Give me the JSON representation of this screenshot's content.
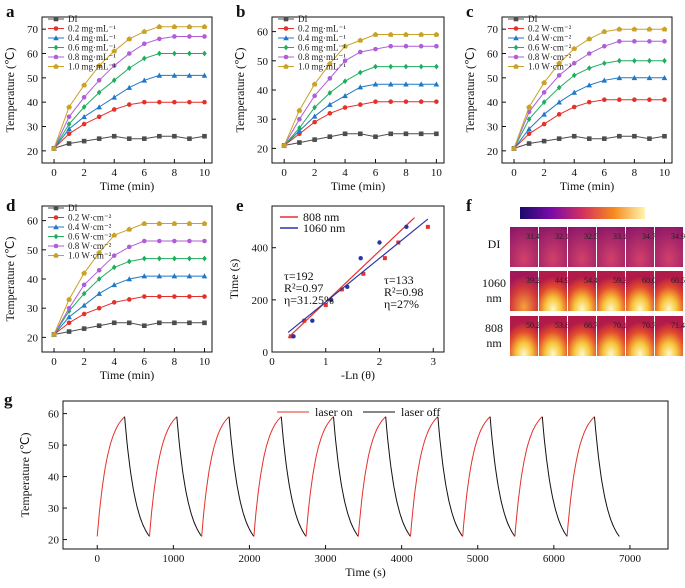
{
  "chart_data": [
    {
      "type": "line",
      "panel": "a",
      "xlabel": "Time (min)",
      "ylabel": "Temperature (℃)",
      "xlim": [
        -0.8,
        10.5
      ],
      "ylim": [
        15,
        75
      ],
      "xticks": [
        0,
        2,
        4,
        6,
        8,
        10
      ],
      "yticks": [
        20,
        30,
        40,
        50,
        60,
        70
      ],
      "x": [
        0,
        1,
        2,
        3,
        4,
        5,
        6,
        7,
        8,
        9,
        10
      ],
      "series": [
        {
          "name": "DI",
          "color": "#4d4d4d",
          "values": [
            21,
            23,
            24,
            25,
            26,
            25,
            25,
            26,
            26,
            25,
            26
          ]
        },
        {
          "name": "0.2 mg·mL⁻¹",
          "color": "#e4312b",
          "values": [
            21,
            27,
            31,
            34,
            37,
            39,
            40,
            40,
            40,
            40,
            40
          ]
        },
        {
          "name": "0.4 mg·mL⁻¹",
          "color": "#1f78c8",
          "values": [
            21,
            29,
            34,
            38,
            42,
            46,
            49,
            51,
            51,
            51,
            51
          ]
        },
        {
          "name": "0.6 mg·mL⁻¹",
          "color": "#1fae5e",
          "values": [
            21,
            31,
            38,
            44,
            49,
            54,
            58,
            60,
            60,
            60,
            60
          ]
        },
        {
          "name": "0.8 mg·mL⁻¹",
          "color": "#b05ed8",
          "values": [
            21,
            34,
            42,
            49,
            55,
            60,
            64,
            66,
            67,
            67,
            67
          ]
        },
        {
          "name": "1.0 mg·mL⁻¹",
          "color": "#c9a227",
          "values": [
            21,
            38,
            47,
            55,
            61,
            66,
            69,
            71,
            71,
            71,
            71
          ]
        }
      ]
    },
    {
      "type": "line",
      "panel": "b",
      "xlabel": "Time (min)",
      "ylabel": "Temperature (℃)",
      "xlim": [
        -0.8,
        10.5
      ],
      "ylim": [
        15,
        65
      ],
      "xticks": [
        0,
        2,
        4,
        6,
        8,
        10
      ],
      "yticks": [
        20,
        30,
        40,
        50,
        60
      ],
      "x": [
        0,
        1,
        2,
        3,
        4,
        5,
        6,
        7,
        8,
        9,
        10
      ],
      "series": [
        {
          "name": "DI",
          "color": "#4d4d4d",
          "values": [
            21,
            22,
            23,
            24,
            25,
            25,
            24,
            25,
            25,
            25,
            25
          ]
        },
        {
          "name": "0.2 mg·mL⁻¹",
          "color": "#e4312b",
          "values": [
            21,
            25,
            29,
            32,
            34,
            35,
            36,
            36,
            36,
            36,
            36
          ]
        },
        {
          "name": "0.4 mg·mL⁻¹",
          "color": "#1f78c8",
          "values": [
            21,
            26,
            31,
            35,
            38,
            41,
            42,
            42,
            42,
            42,
            42
          ]
        },
        {
          "name": "0.6 mg·mL⁻¹",
          "color": "#1fae5e",
          "values": [
            21,
            27,
            34,
            39,
            43,
            46,
            48,
            48,
            48,
            48,
            48
          ]
        },
        {
          "name": "0.8 mg·mL⁻¹",
          "color": "#b05ed8",
          "values": [
            21,
            30,
            38,
            44,
            50,
            53,
            54,
            55,
            55,
            55,
            55
          ]
        },
        {
          "name": "1.0 mg·mL⁻¹",
          "color": "#c9a227",
          "values": [
            21,
            33,
            42,
            49,
            55,
            57,
            59,
            59,
            59,
            59,
            59
          ]
        }
      ]
    },
    {
      "type": "line",
      "panel": "c",
      "xlabel": "Time (min)",
      "ylabel": "Temperature (℃)",
      "xlim": [
        -0.8,
        10.5
      ],
      "ylim": [
        15,
        75
      ],
      "xticks": [
        0,
        2,
        4,
        6,
        8,
        10
      ],
      "yticks": [
        20,
        30,
        40,
        50,
        60,
        70
      ],
      "x": [
        0,
        1,
        2,
        3,
        4,
        5,
        6,
        7,
        8,
        9,
        10
      ],
      "series": [
        {
          "name": "DI",
          "color": "#4d4d4d",
          "values": [
            21,
            23,
            24,
            25,
            26,
            25,
            25,
            26,
            26,
            25,
            26
          ]
        },
        {
          "name": "0.2 W·cm⁻²",
          "color": "#e4312b",
          "values": [
            21,
            27,
            31,
            35,
            38,
            40,
            41,
            41,
            41,
            41,
            41
          ]
        },
        {
          "name": "0.4 W·cm⁻²",
          "color": "#1f78c8",
          "values": [
            21,
            29,
            35,
            40,
            44,
            47,
            49,
            50,
            50,
            50,
            50
          ]
        },
        {
          "name": "0.6 W·cm⁻²",
          "color": "#1fae5e",
          "values": [
            21,
            33,
            40,
            46,
            51,
            54,
            56,
            57,
            57,
            57,
            57
          ]
        },
        {
          "name": "0.8 W·cm⁻²",
          "color": "#b05ed8",
          "values": [
            21,
            36,
            44,
            51,
            56,
            60,
            63,
            65,
            65,
            65,
            65
          ]
        },
        {
          "name": "1.0 W·cm⁻²",
          "color": "#c9a227",
          "values": [
            21,
            38,
            48,
            56,
            62,
            66,
            69,
            70,
            70,
            70,
            70
          ]
        }
      ]
    },
    {
      "type": "line",
      "panel": "d",
      "xlabel": "Time (min)",
      "ylabel": "Temperature (℃)",
      "xlim": [
        -0.8,
        10.5
      ],
      "ylim": [
        15,
        65
      ],
      "xticks": [
        0,
        2,
        4,
        6,
        8,
        10
      ],
      "yticks": [
        20,
        30,
        40,
        50,
        60
      ],
      "x": [
        0,
        1,
        2,
        3,
        4,
        5,
        6,
        7,
        8,
        9,
        10
      ],
      "series": [
        {
          "name": "DI",
          "color": "#4d4d4d",
          "values": [
            21,
            22,
            23,
            24,
            25,
            25,
            24,
            25,
            25,
            25,
            25
          ]
        },
        {
          "name": "0.2 W·cm⁻²",
          "color": "#e4312b",
          "values": [
            21,
            25,
            28,
            30,
            32,
            33,
            34,
            34,
            34,
            34,
            34
          ]
        },
        {
          "name": "0.4 W·cm⁻²",
          "color": "#1f78c8",
          "values": [
            21,
            27,
            31,
            35,
            38,
            40,
            41,
            41,
            41,
            41,
            41
          ]
        },
        {
          "name": "0.6 W·cm⁻²",
          "color": "#1fae5e",
          "values": [
            21,
            29,
            35,
            40,
            44,
            46,
            47,
            47,
            47,
            47,
            47
          ]
        },
        {
          "name": "0.8 W·cm⁻²",
          "color": "#b05ed8",
          "values": [
            21,
            30,
            38,
            43,
            48,
            51,
            53,
            53,
            53,
            53,
            53
          ]
        },
        {
          "name": "1.0 W·cm⁻²",
          "color": "#c9a227",
          "values": [
            21,
            33,
            42,
            49,
            55,
            57,
            59,
            59,
            59,
            59,
            59
          ]
        }
      ]
    },
    {
      "type": "scatter",
      "panel": "e",
      "xlabel": "-Ln (θ)",
      "ylabel": "Time (s)",
      "xlim": [
        0,
        3.2
      ],
      "ylim": [
        0,
        560
      ],
      "xticks": [
        0,
        1,
        2,
        3
      ],
      "yticks": [
        0,
        200,
        400
      ],
      "series": [
        {
          "name": "808 nm",
          "color": "#e4312b",
          "points": [
            [
              0.35,
              60
            ],
            [
              0.6,
              120
            ],
            [
              1.0,
              180
            ],
            [
              1.3,
              240
            ],
            [
              1.7,
              300
            ],
            [
              2.1,
              360
            ],
            [
              2.35,
              420
            ],
            [
              2.9,
              480
            ]
          ],
          "fit": [
            [
              0.3,
              55
            ],
            [
              2.65,
              515
            ]
          ]
        },
        {
          "name": "1060 nm",
          "color": "#2a34a8",
          "points": [
            [
              0.4,
              60
            ],
            [
              0.75,
              120
            ],
            [
              1.1,
              200
            ],
            [
              1.4,
              250
            ],
            [
              1.65,
              360
            ],
            [
              2.0,
              420
            ],
            [
              2.5,
              480
            ]
          ],
          "fit": [
            [
              0.3,
              75
            ],
            [
              2.9,
              510
            ]
          ]
        }
      ],
      "annotations": [
        {
          "lines": [
            "τ=192",
            "R²=0.97",
            "η=31.25%"
          ]
        },
        {
          "lines": [
            "τ=133",
            "R²=0.98",
            "η=27%"
          ]
        }
      ]
    },
    {
      "type": "line",
      "panel": "g",
      "xlabel": "Time (s)",
      "ylabel": "Temperature (℃)",
      "xlim": [
        -450,
        7500
      ],
      "ylim": [
        17,
        64
      ],
      "xticks": [
        0,
        1000,
        2000,
        3000,
        4000,
        5000,
        6000,
        7000
      ],
      "yticks": [
        20,
        30,
        40,
        50,
        60
      ],
      "cycles": 10,
      "cycle_start_s": 0,
      "cycle_period_s": 686,
      "heat_duration_s": 360,
      "cool_duration_s": 326,
      "t_min": 21,
      "t_max": 59,
      "series": [
        {
          "name": "laser on",
          "color": "#e4312b"
        },
        {
          "name": "laser off",
          "color": "#111111"
        }
      ]
    }
  ],
  "panel_labels": {
    "a": "a",
    "b": "b",
    "c": "c",
    "d": "d",
    "e": "e",
    "f": "f",
    "g": "g"
  },
  "thermal_images": {
    "rows": [
      {
        "label": "DI",
        "values": [
          "31.4",
          "32.1",
          "32.5",
          "33.1",
          "34.7",
          "34.9"
        ]
      },
      {
        "label": "1060 nm",
        "values": [
          "39.2",
          "44.9",
          "54.4",
          "59.3",
          "60.0",
          "60.5"
        ]
      },
      {
        "label": "808 nm",
        "values": [
          "50.2",
          "53.6",
          "66.7",
          "70.1",
          "70.7",
          "71.4"
        ]
      }
    ]
  }
}
